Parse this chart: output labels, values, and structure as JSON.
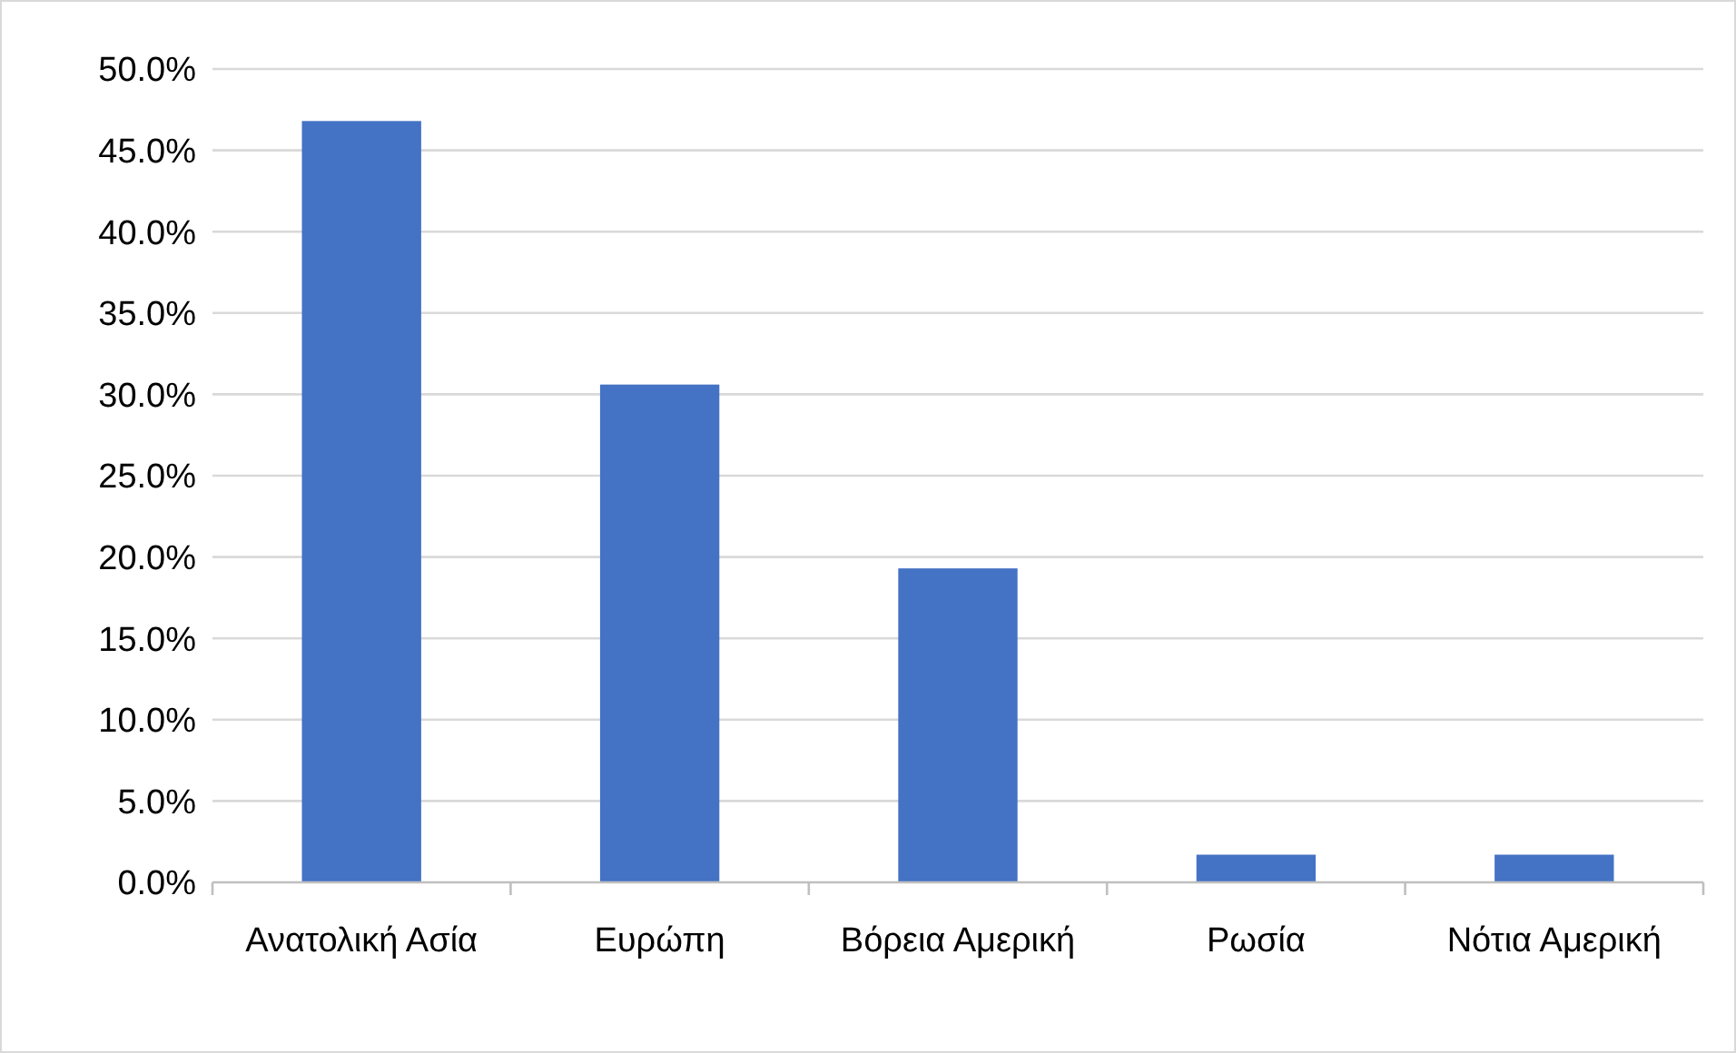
{
  "chart_data": {
    "type": "bar",
    "categories": [
      "Ανατολική Ασία",
      "Ευρώπη",
      "Βόρεια Αμερική",
      "Ρωσία",
      "Νότια Αμερική"
    ],
    "values": [
      46.8,
      30.6,
      19.3,
      1.7,
      1.7
    ],
    "color": "#4472c4",
    "ylim": [
      0,
      50
    ],
    "yticks": [
      {
        "value": 0,
        "label": "0.0%"
      },
      {
        "value": 5,
        "label": "5.0%"
      },
      {
        "value": 10,
        "label": "10.0%"
      },
      {
        "value": 15,
        "label": "15.0%"
      },
      {
        "value": 20,
        "label": "20.0%"
      },
      {
        "value": 25,
        "label": "25.0%"
      },
      {
        "value": 30,
        "label": "30.0%"
      },
      {
        "value": 35,
        "label": "35.0%"
      },
      {
        "value": 40,
        "label": "40.0%"
      },
      {
        "value": 45,
        "label": "45.0%"
      },
      {
        "value": 50,
        "label": "50.0%"
      }
    ],
    "grid": "y"
  }
}
